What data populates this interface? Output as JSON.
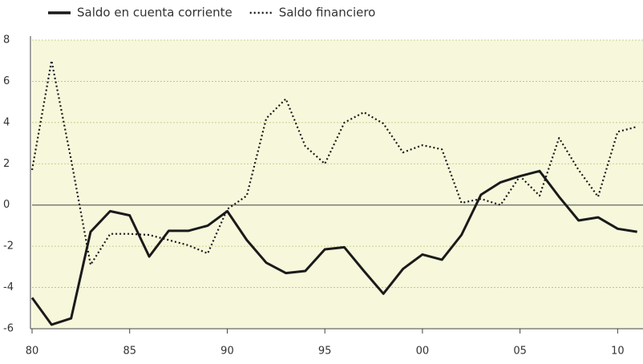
{
  "chart_data": {
    "type": "line",
    "x": [
      1980,
      1981,
      1982,
      1983,
      1984,
      1985,
      1986,
      1987,
      1988,
      1989,
      1990,
      1991,
      1992,
      1993,
      1994,
      1995,
      1996,
      1997,
      1998,
      1999,
      2000,
      2001,
      2002,
      2003,
      2004,
      2005,
      2006,
      2007,
      2008,
      2009,
      2010,
      2011
    ],
    "series": [
      {
        "name": "Saldo en cuenta corriente",
        "color": "#1a1a1a",
        "style": "solid",
        "values": [
          -4.5,
          -5.8,
          -5.5,
          -1.3,
          -0.3,
          -0.5,
          -2.5,
          -1.25,
          -1.25,
          -1.0,
          -0.3,
          -1.7,
          -2.8,
          -3.3,
          -3.2,
          -2.15,
          -2.05,
          -3.2,
          -4.3,
          -3.1,
          -2.4,
          -2.65,
          -1.45,
          0.5,
          1.1,
          1.4,
          1.65,
          0.4,
          -0.75,
          -0.6,
          -1.15,
          -1.3
        ]
      },
      {
        "name": "Saldo financiero",
        "color": "#1a1a1a",
        "style": "dotted",
        "values": [
          1.7,
          7.0,
          2.2,
          -2.9,
          -1.4,
          -1.4,
          -1.45,
          -1.7,
          -1.95,
          -2.35,
          -0.2,
          0.45,
          4.2,
          5.15,
          2.85,
          2.0,
          4.0,
          4.5,
          3.95,
          2.55,
          2.9,
          2.7,
          0.1,
          0.3,
          0.0,
          1.4,
          0.45,
          3.25,
          1.7,
          0.4,
          3.55,
          3.8
        ]
      }
    ],
    "xlim": [
      1980,
      2011.3
    ],
    "xticks": [
      {
        "value": 1980,
        "label": "80"
      },
      {
        "value": 1985,
        "label": "85"
      },
      {
        "value": 1990,
        "label": "90"
      },
      {
        "value": 1995,
        "label": "95"
      },
      {
        "value": 2000,
        "label": "00"
      },
      {
        "value": 2005,
        "label": "05"
      },
      {
        "value": 2010,
        "label": "10"
      }
    ],
    "ylim": [
      -6,
      8
    ],
    "yticks": [
      -6,
      -4,
      -2,
      0,
      2,
      4,
      6,
      8
    ],
    "grid": true,
    "legend": "top"
  }
}
